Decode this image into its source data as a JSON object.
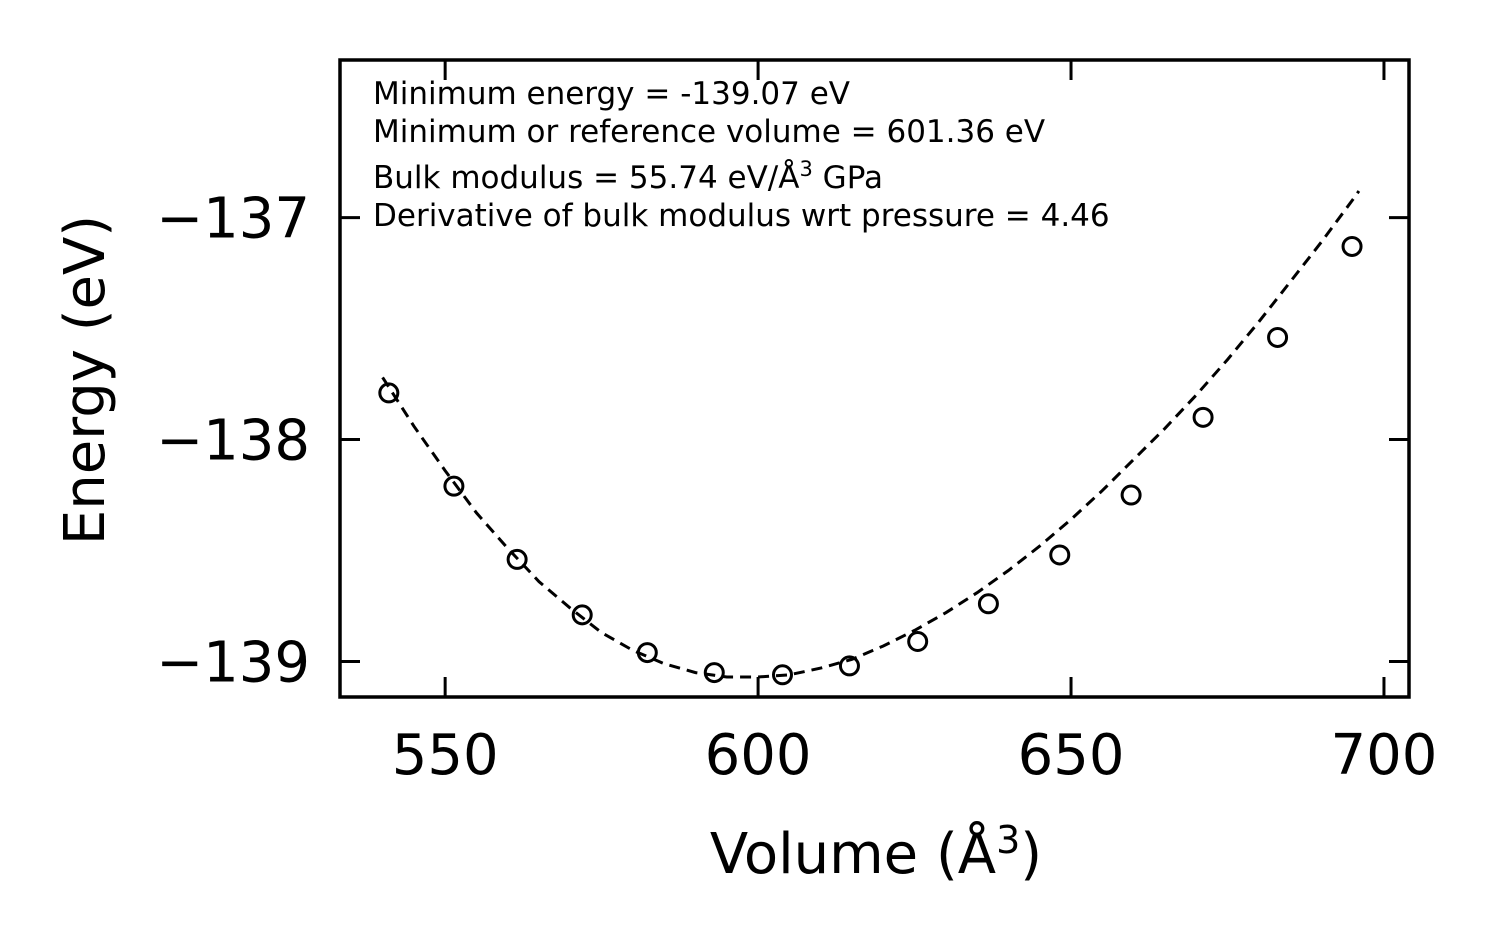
{
  "chart_data": {
    "type": "scatter",
    "title": "",
    "xlabel": "Volume (Å",
    "xlabel_sup": "3",
    "xlabel_end": ")",
    "ylabel": "Energy (eV)",
    "xlim": [
      533.2,
      704
    ],
    "ylim": [
      -139.16,
      -136.29
    ],
    "xticks": [
      550,
      600,
      650,
      700
    ],
    "xtick_labels": [
      "550",
      "600",
      "650",
      "700"
    ],
    "yticks": [
      -139,
      -138,
      -137
    ],
    "ytick_labels": [
      "−139",
      "−138",
      "−137"
    ],
    "series": [
      {
        "name": "data points",
        "marker": "open-circle",
        "x": [
          541.0,
          551.4,
          561.5,
          571.9,
          582.3,
          593.0,
          603.9,
          614.6,
          625.5,
          636.8,
          648.2,
          659.6,
          671.1,
          683.0,
          694.9
        ],
        "y": [
          -137.79,
          -138.21,
          -138.54,
          -138.79,
          -138.96,
          -139.05,
          -139.06,
          -139.02,
          -138.91,
          -138.74,
          -138.52,
          -138.25,
          -137.9,
          -137.54,
          -137.13
        ]
      },
      {
        "name": "Birch-Murnaghan fit",
        "line": "dashed",
        "x": [
          540,
          545,
          550,
          555,
          560,
          565,
          570,
          575,
          580,
          585,
          590,
          595,
          600,
          605,
          610,
          615,
          620,
          625,
          630,
          635,
          640,
          645,
          650,
          655,
          660,
          665,
          670,
          675,
          680,
          685,
          690,
          695,
          696
        ],
        "y": [
          -137.72,
          -137.94,
          -138.14,
          -138.33,
          -138.49,
          -138.64,
          -138.76,
          -138.87,
          -138.95,
          -139.01,
          -139.05,
          -139.07,
          -139.07,
          -139.06,
          -139.03,
          -138.99,
          -138.93,
          -138.86,
          -138.78,
          -138.69,
          -138.59,
          -138.48,
          -138.36,
          -138.23,
          -138.09,
          -137.95,
          -137.8,
          -137.64,
          -137.47,
          -137.29,
          -137.11,
          -136.92,
          -136.88
        ]
      }
    ],
    "annotations": [
      "Minimum energy = -139.07 eV",
      "Minimum or reference volume = 601.36 eV",
      "Bulk modulus = 55.74 eV/Å",
      "3",
      " GPa",
      "Derivative of bulk modulus wrt pressure = 4.46"
    ],
    "annotation_values": {
      "min_energy_eV": -139.07,
      "ref_volume": 601.36,
      "bulk_modulus": 55.74,
      "bulk_modulus_derivative": 4.46
    },
    "grid": false,
    "legend": "none"
  }
}
